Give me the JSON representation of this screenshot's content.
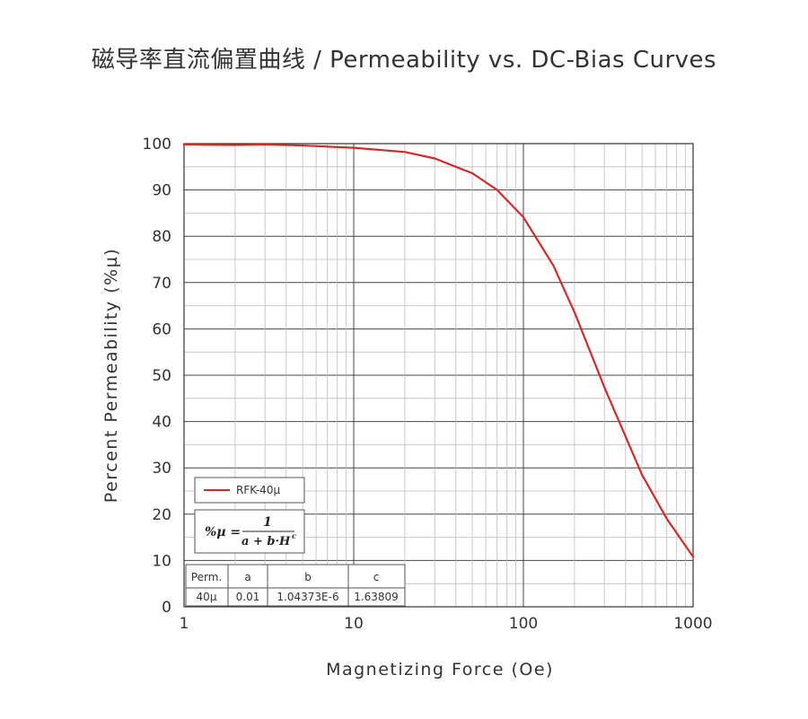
{
  "chart_data": {
    "type": "line",
    "title": "磁导率直流偏置曲线 / Permeability vs. DC-Bias Curves",
    "xlabel": "Magnetizing Force (Oe)",
    "ylabel": "Percent Permeability (%µ)",
    "x_scale": "log",
    "xlim": [
      1,
      1000
    ],
    "ylim": [
      0,
      100
    ],
    "x_ticks": [
      "1",
      "10",
      "100",
      "1000"
    ],
    "y_ticks": [
      "0",
      "10",
      "20",
      "30",
      "40",
      "50",
      "60",
      "70",
      "80",
      "90",
      "100"
    ],
    "grid": true,
    "legend_position": "bottom-left",
    "series": [
      {
        "name": "RFK-40µ",
        "color": "#d42a2a",
        "x": [
          1,
          2,
          3,
          5,
          10,
          20,
          30,
          50,
          70,
          100,
          150,
          200,
          300,
          500,
          700,
          1000
        ],
        "y": [
          99.8,
          99.7,
          99.8,
          99.6,
          99.1,
          98.2,
          96.8,
          93.6,
          90.0,
          84.1,
          73.7,
          63.6,
          47.4,
          28.5,
          19.0,
          10.8
        ]
      }
    ],
    "formula": {
      "lhs": "%µ =",
      "numerator": "1",
      "denominator": "a + b·H",
      "exponent": "c"
    },
    "coefficients_table": {
      "headers": [
        "Perm.",
        "a",
        "b",
        "c"
      ],
      "rows": [
        [
          "40µ",
          "0.01",
          "1.04373E-6",
          "1.63809"
        ]
      ]
    }
  }
}
